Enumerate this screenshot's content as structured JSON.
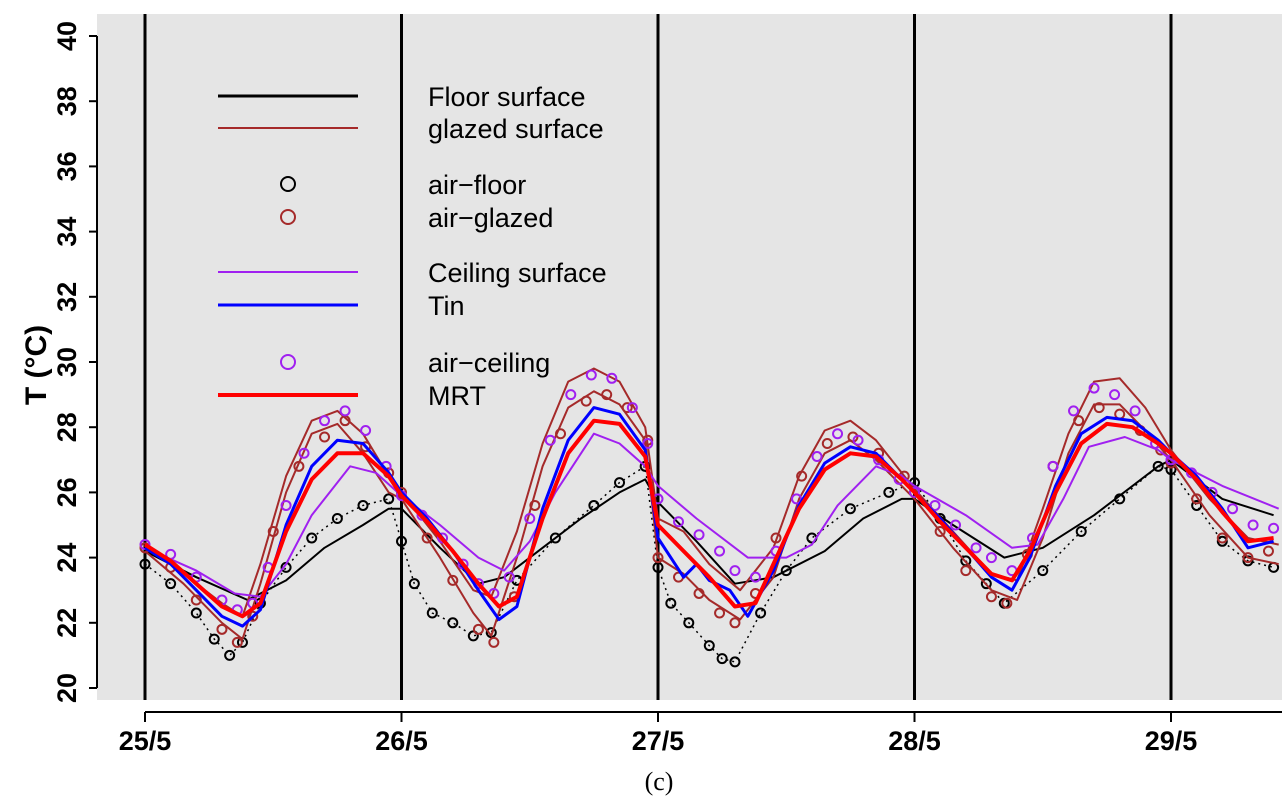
{
  "panel_label": "(c)",
  "chart_data": {
    "type": "line",
    "xlabel": "",
    "ylabel": "T (°C)",
    "ylim": [
      20,
      40
    ],
    "yticks": [
      20,
      22,
      24,
      26,
      28,
      30,
      32,
      34,
      36,
      38,
      40
    ],
    "x_unit": "days from 25/5",
    "xlim": [
      0,
      4.42
    ],
    "xtick_positions": [
      0,
      1,
      2,
      3,
      4
    ],
    "xtick_labels": [
      "25/5",
      "26/5",
      "27/5",
      "28/5",
      "29/5"
    ],
    "day_dividers": [
      0,
      1,
      2,
      3,
      4
    ],
    "background": "#e5e5e5",
    "grid": false,
    "legend_position": "top-left",
    "legend": [
      {
        "label": "Floor surface",
        "style": "line",
        "color": "#000000"
      },
      {
        "label": "glazed surface",
        "style": "line",
        "color": "#a52a2a"
      },
      {
        "label": "air−floor",
        "style": "circle",
        "color": "#000000"
      },
      {
        "label": "air−glazed",
        "style": "circle",
        "color": "#a52a2a"
      },
      {
        "label": "Ceiling surface",
        "style": "line",
        "color": "#a020f0"
      },
      {
        "label": "Tin",
        "style": "line",
        "color": "#0000ff"
      },
      {
        "label": "air−ceiling",
        "style": "circle",
        "color": "#a020f0"
      },
      {
        "label": "MRT",
        "style": "line",
        "color": "#ff0000"
      }
    ],
    "series": [
      {
        "name": "Floor surface",
        "style": "line",
        "color": "#000000",
        "width": 2,
        "x": [
          0,
          0.2,
          0.4,
          0.55,
          0.7,
          0.85,
          0.95,
          1.0,
          1.15,
          1.3,
          1.4,
          1.55,
          1.7,
          1.85,
          1.95,
          2.0,
          2.15,
          2.3,
          2.45,
          2.65,
          2.8,
          2.95,
          3.0,
          3.15,
          3.35,
          3.5,
          3.7,
          3.85,
          3.95,
          4.0,
          4.2,
          4.4
        ],
        "y": [
          24.2,
          23.4,
          22.7,
          23.3,
          24.3,
          25.0,
          25.5,
          25.5,
          24.3,
          23.2,
          23.4,
          24.3,
          25.2,
          26.0,
          26.4,
          25.7,
          24.5,
          23.2,
          23.4,
          24.2,
          25.2,
          25.8,
          25.8,
          25.0,
          24.0,
          24.3,
          25.3,
          26.2,
          26.8,
          27.0,
          25.8,
          25.3
        ]
      },
      {
        "name": "air−floor",
        "style": "dotted-circle",
        "color": "#000000",
        "x": [
          0,
          0.1,
          0.2,
          0.27,
          0.33,
          0.38,
          0.45,
          0.55,
          0.65,
          0.75,
          0.85,
          0.95,
          1.0,
          1.05,
          1.12,
          1.2,
          1.28,
          1.35,
          1.45,
          1.6,
          1.75,
          1.85,
          1.95,
          2.0,
          2.05,
          2.12,
          2.2,
          2.25,
          2.3,
          2.4,
          2.5,
          2.6,
          2.75,
          2.9,
          3.0,
          3.1,
          3.2,
          3.28,
          3.35,
          3.5,
          3.65,
          3.8,
          3.95,
          4.0,
          4.1,
          4.2,
          4.3,
          4.4
        ],
        "y": [
          23.8,
          23.2,
          22.3,
          21.5,
          21.0,
          21.4,
          22.6,
          23.7,
          24.6,
          25.2,
          25.6,
          25.8,
          24.5,
          23.2,
          22.3,
          22.0,
          21.6,
          21.7,
          23.3,
          24.6,
          25.6,
          26.3,
          26.8,
          23.7,
          22.6,
          22.0,
          21.3,
          20.9,
          20.8,
          22.3,
          23.6,
          24.6,
          25.5,
          26.0,
          26.3,
          25.2,
          23.9,
          23.2,
          22.6,
          23.6,
          24.8,
          25.8,
          26.8,
          26.7,
          25.6,
          24.5,
          23.9,
          23.7
        ]
      },
      {
        "name": "glazed surface (upper)",
        "style": "line",
        "color": "#a52a2a",
        "width": 2,
        "x": [
          0,
          0.15,
          0.3,
          0.38,
          0.45,
          0.55,
          0.65,
          0.75,
          0.85,
          0.95,
          1.0,
          1.15,
          1.28,
          1.35,
          1.45,
          1.55,
          1.65,
          1.75,
          1.85,
          1.95,
          2.0,
          2.1,
          2.2,
          2.32,
          2.45,
          2.55,
          2.65,
          2.75,
          2.85,
          2.95,
          3.0,
          3.15,
          3.3,
          3.4,
          3.5,
          3.6,
          3.7,
          3.8,
          3.9,
          4.0,
          4.15,
          4.3,
          4.42
        ],
        "y": [
          24.4,
          23.5,
          22.6,
          22.2,
          23.8,
          26.5,
          28.2,
          28.5,
          27.8,
          26.5,
          26.0,
          24.5,
          23.0,
          22.8,
          24.8,
          27.5,
          29.4,
          29.8,
          29.4,
          28.0,
          25.2,
          24.8,
          23.8,
          23.0,
          24.3,
          26.5,
          27.9,
          28.2,
          27.6,
          26.6,
          26.1,
          24.8,
          23.5,
          23.3,
          25.5,
          27.8,
          29.4,
          29.5,
          28.6,
          27.3,
          25.8,
          24.6,
          24.4
        ]
      },
      {
        "name": "glazed surface (lower)",
        "style": "line",
        "color": "#a52a2a",
        "width": 2,
        "x": [
          0,
          0.15,
          0.3,
          0.38,
          0.45,
          0.55,
          0.65,
          0.75,
          0.85,
          0.95,
          1.0,
          1.15,
          1.28,
          1.35,
          1.45,
          1.55,
          1.65,
          1.75,
          1.85,
          1.95,
          2.0,
          2.1,
          2.2,
          2.32,
          2.45,
          2.55,
          2.65,
          2.75,
          2.85,
          2.95,
          3.0,
          3.15,
          3.3,
          3.4,
          3.5,
          3.6,
          3.7,
          3.8,
          3.9,
          4.0,
          4.15,
          4.3,
          4.42
        ],
        "y": [
          24.2,
          23.2,
          22.0,
          21.5,
          23.2,
          26.0,
          27.8,
          28.1,
          27.2,
          26.0,
          25.8,
          24.0,
          22.3,
          21.6,
          24.0,
          26.8,
          28.6,
          29.1,
          28.7,
          27.6,
          24.0,
          23.5,
          22.7,
          22.1,
          23.4,
          25.8,
          27.2,
          27.6,
          27.0,
          26.2,
          25.8,
          24.3,
          23.0,
          22.7,
          24.6,
          27.2,
          28.7,
          28.7,
          27.9,
          27.0,
          25.3,
          24.0,
          23.8
        ]
      },
      {
        "name": "air−glazed",
        "style": "circle",
        "color": "#a52a2a",
        "x": [
          0,
          0.1,
          0.2,
          0.3,
          0.36,
          0.42,
          0.5,
          0.6,
          0.7,
          0.78,
          0.86,
          0.95,
          1.0,
          1.1,
          1.2,
          1.3,
          1.36,
          1.44,
          1.52,
          1.62,
          1.72,
          1.8,
          1.88,
          1.96,
          2.0,
          2.08,
          2.16,
          2.24,
          2.3,
          2.38,
          2.46,
          2.56,
          2.66,
          2.76,
          2.86,
          2.96,
          3.0,
          3.1,
          3.2,
          3.3,
          3.36,
          3.44,
          3.54,
          3.64,
          3.72,
          3.8,
          3.88,
          3.96,
          4.0,
          4.1,
          4.2,
          4.3,
          4.38
        ],
        "y": [
          24.3,
          23.7,
          22.7,
          21.8,
          21.4,
          22.2,
          24.8,
          26.8,
          27.7,
          28.2,
          27.4,
          26.6,
          26.0,
          24.6,
          23.3,
          21.8,
          21.4,
          22.8,
          25.6,
          27.8,
          28.8,
          29.0,
          28.6,
          27.6,
          24.0,
          23.4,
          22.9,
          22.3,
          22.0,
          22.9,
          24.6,
          26.5,
          27.5,
          27.7,
          27.2,
          26.5,
          26.0,
          24.8,
          23.6,
          22.8,
          22.6,
          24.1,
          26.8,
          28.2,
          28.6,
          28.4,
          27.9,
          27.3,
          26.9,
          25.8,
          24.6,
          24.0,
          24.2
        ]
      },
      {
        "name": "Ceiling surface",
        "style": "line",
        "color": "#a020f0",
        "width": 2,
        "x": [
          0,
          0.2,
          0.35,
          0.45,
          0.55,
          0.65,
          0.8,
          0.9,
          1.0,
          1.15,
          1.3,
          1.4,
          1.5,
          1.6,
          1.75,
          1.85,
          1.95,
          2.0,
          2.15,
          2.35,
          2.5,
          2.6,
          2.7,
          2.85,
          2.95,
          3.0,
          3.2,
          3.38,
          3.48,
          3.58,
          3.68,
          3.82,
          3.95,
          4.0,
          4.2,
          4.42
        ],
        "y": [
          24.3,
          23.6,
          22.9,
          22.8,
          23.8,
          25.3,
          26.8,
          26.6,
          25.9,
          25.0,
          24.0,
          23.6,
          24.5,
          26.0,
          27.8,
          27.5,
          26.8,
          26.2,
          25.2,
          24.0,
          24.0,
          24.4,
          25.6,
          26.8,
          26.5,
          26.2,
          25.3,
          24.3,
          24.4,
          25.8,
          27.4,
          27.7,
          27.3,
          27.0,
          26.2,
          25.5
        ]
      },
      {
        "name": "air−ceiling",
        "style": "circle",
        "color": "#a020f0",
        "x": [
          0,
          0.1,
          0.2,
          0.3,
          0.36,
          0.42,
          0.48,
          0.55,
          0.62,
          0.7,
          0.78,
          0.86,
          0.94,
          1.0,
          1.08,
          1.16,
          1.24,
          1.3,
          1.36,
          1.42,
          1.5,
          1.58,
          1.66,
          1.74,
          1.82,
          1.9,
          1.96,
          2.0,
          2.08,
          2.16,
          2.24,
          2.3,
          2.38,
          2.46,
          2.54,
          2.62,
          2.7,
          2.78,
          2.86,
          2.94,
          3.0,
          3.08,
          3.16,
          3.24,
          3.3,
          3.38,
          3.46,
          3.54,
          3.62,
          3.7,
          3.78,
          3.86,
          3.94,
          4.0,
          4.08,
          4.16,
          4.24,
          4.32,
          4.4
        ],
        "y": [
          24.4,
          24.1,
          23.4,
          22.7,
          22.4,
          22.6,
          23.7,
          25.6,
          27.2,
          28.2,
          28.5,
          27.9,
          26.8,
          25.9,
          25.3,
          24.6,
          23.8,
          23.2,
          22.9,
          23.4,
          25.2,
          27.6,
          29.0,
          29.6,
          29.5,
          28.6,
          27.5,
          25.8,
          25.1,
          24.7,
          24.2,
          23.6,
          23.4,
          24.2,
          25.8,
          27.1,
          27.8,
          27.6,
          27.0,
          26.4,
          26.0,
          25.6,
          25.0,
          24.3,
          24.0,
          23.6,
          24.6,
          26.8,
          28.5,
          29.2,
          29.0,
          28.5,
          27.5,
          27.0,
          26.6,
          26.0,
          25.5,
          25.0,
          24.9
        ]
      },
      {
        "name": "Tin",
        "style": "line",
        "color": "#0000ff",
        "width": 3,
        "x": [
          0,
          0.1,
          0.2,
          0.3,
          0.38,
          0.45,
          0.55,
          0.65,
          0.75,
          0.85,
          0.95,
          1.0,
          1.1,
          1.2,
          1.3,
          1.38,
          1.45,
          1.55,
          1.65,
          1.75,
          1.85,
          1.95,
          2.0,
          2.05,
          2.1,
          2.15,
          2.2,
          2.28,
          2.35,
          2.45,
          2.55,
          2.65,
          2.75,
          2.85,
          2.95,
          3.0,
          3.1,
          3.2,
          3.3,
          3.38,
          3.45,
          3.55,
          3.65,
          3.75,
          3.85,
          3.95,
          4.0,
          4.1,
          4.2,
          4.3,
          4.4
        ],
        "y": [
          24.3,
          23.8,
          23.0,
          22.2,
          21.9,
          22.4,
          25.0,
          26.8,
          27.6,
          27.5,
          26.6,
          26.0,
          25.2,
          24.2,
          23.0,
          22.1,
          22.5,
          25.5,
          27.6,
          28.6,
          28.4,
          27.3,
          24.6,
          24.0,
          23.4,
          23.8,
          23.3,
          23.0,
          22.2,
          23.6,
          25.6,
          26.9,
          27.4,
          27.2,
          26.4,
          26.0,
          25.2,
          24.3,
          23.4,
          23.0,
          24.0,
          26.2,
          27.8,
          28.3,
          28.2,
          27.6,
          27.2,
          26.5,
          25.5,
          24.3,
          24.5
        ]
      },
      {
        "name": "MRT",
        "style": "line",
        "color": "#ff0000",
        "width": 4,
        "x": [
          0,
          0.1,
          0.2,
          0.3,
          0.38,
          0.45,
          0.55,
          0.65,
          0.75,
          0.85,
          0.95,
          1.0,
          1.1,
          1.2,
          1.3,
          1.38,
          1.45,
          1.55,
          1.65,
          1.75,
          1.85,
          1.95,
          2.0,
          2.1,
          2.2,
          2.3,
          2.38,
          2.45,
          2.55,
          2.65,
          2.75,
          2.85,
          2.95,
          3.0,
          3.1,
          3.2,
          3.3,
          3.38,
          3.45,
          3.55,
          3.65,
          3.75,
          3.85,
          3.95,
          4.0,
          4.1,
          4.2,
          4.3,
          4.4
        ],
        "y": [
          24.4,
          23.9,
          23.2,
          22.5,
          22.2,
          22.6,
          24.8,
          26.4,
          27.2,
          27.2,
          26.5,
          25.9,
          25.1,
          24.2,
          23.2,
          22.5,
          22.8,
          25.2,
          27.2,
          28.2,
          28.1,
          27.1,
          25.0,
          24.2,
          23.4,
          22.5,
          22.6,
          23.8,
          25.5,
          26.7,
          27.2,
          27.1,
          26.4,
          26.0,
          25.1,
          24.3,
          23.5,
          23.3,
          24.2,
          26.0,
          27.5,
          28.1,
          28.0,
          27.5,
          27.2,
          26.4,
          25.4,
          24.5,
          24.6
        ]
      }
    ]
  }
}
